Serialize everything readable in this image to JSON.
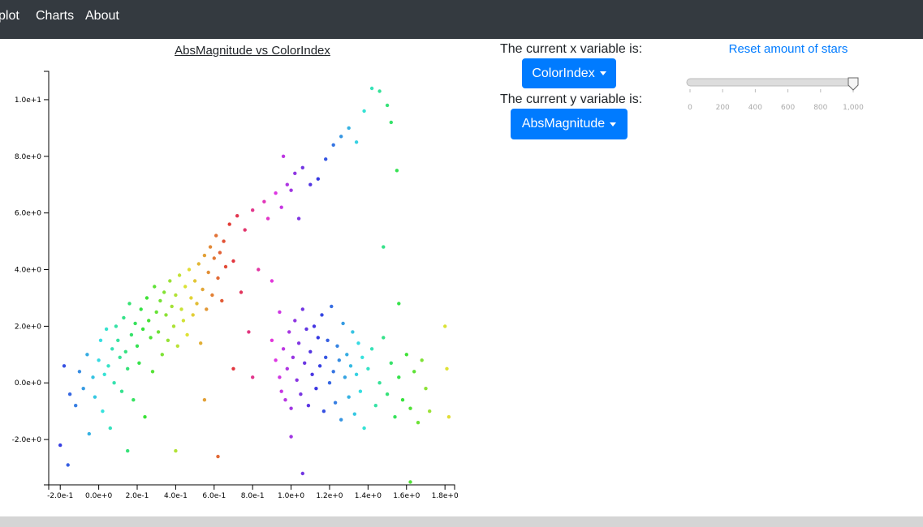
{
  "nav": {
    "items": [
      {
        "label": "plot",
        "left": -2
      },
      {
        "label": "Charts",
        "left": 44
      },
      {
        "label": "About",
        "left": 105
      }
    ]
  },
  "controls": {
    "x_label": "The current x variable is:",
    "x_value": "ColorIndex",
    "y_label": "The current y variable is:",
    "y_value": "AbsMagnitude",
    "reset_label": "Reset amount of stars",
    "slider": {
      "min": 0,
      "max": 1000,
      "value": 1000,
      "ticks": [
        "0",
        "200",
        "400",
        "600",
        "800",
        "1,000"
      ]
    }
  },
  "chart_data": {
    "type": "scatter",
    "title": "AbsMagnitude vs ColorIndex",
    "xlabel": "ColorIndex",
    "ylabel": "AbsMagnitude",
    "xlim": [
      -0.26,
      1.85
    ],
    "ylim": [
      -3.6,
      11.0
    ],
    "x_ticks": [
      "-2.0e-1",
      "0.0e+0",
      "2.0e-1",
      "4.0e-1",
      "6.0e-1",
      "8.0e-1",
      "1.0e+0",
      "1.2e+0",
      "1.4e+0",
      "1.6e+0",
      "1.8e+0"
    ],
    "x_tick_values": [
      -0.2,
      0,
      0.2,
      0.4,
      0.6,
      0.8,
      1.0,
      1.2,
      1.4,
      1.6,
      1.8
    ],
    "y_ticks": [
      "-2.0e+0",
      "0.0e+0",
      "2.0e+0",
      "4.0e+0",
      "6.0e+0",
      "8.0e+0",
      "1.0e+1"
    ],
    "y_tick_values": [
      -2,
      0,
      2,
      4,
      6,
      8,
      10
    ],
    "color_scale": "rainbow by ColorIndex",
    "points": [
      [
        -0.2,
        -2.2
      ],
      [
        -0.16,
        -2.9
      ],
      [
        -0.18,
        0.6
      ],
      [
        -0.15,
        -0.4
      ],
      [
        -0.12,
        -0.8
      ],
      [
        -0.1,
        0.4
      ],
      [
        -0.08,
        -0.2
      ],
      [
        -0.06,
        1.0
      ],
      [
        -0.05,
        -1.8
      ],
      [
        -0.03,
        0.2
      ],
      [
        -0.02,
        -0.5
      ],
      [
        0.0,
        0.8
      ],
      [
        0.01,
        1.5
      ],
      [
        0.02,
        -1.0
      ],
      [
        0.03,
        0.3
      ],
      [
        0.04,
        1.9
      ],
      [
        0.05,
        0.6
      ],
      [
        0.06,
        -1.6
      ],
      [
        0.07,
        1.2
      ],
      [
        0.08,
        0.0
      ],
      [
        0.09,
        2.0
      ],
      [
        0.1,
        1.5
      ],
      [
        0.11,
        0.9
      ],
      [
        0.12,
        -0.3
      ],
      [
        0.13,
        2.3
      ],
      [
        0.14,
        1.1
      ],
      [
        0.15,
        0.5
      ],
      [
        0.16,
        2.8
      ],
      [
        0.17,
        1.7
      ],
      [
        0.18,
        -0.6
      ],
      [
        0.19,
        2.1
      ],
      [
        0.2,
        1.3
      ],
      [
        0.21,
        0.7
      ],
      [
        0.22,
        2.6
      ],
      [
        0.23,
        1.9
      ],
      [
        0.24,
        -1.2
      ],
      [
        0.25,
        3.0
      ],
      [
        0.26,
        2.2
      ],
      [
        0.27,
        1.6
      ],
      [
        0.28,
        0.4
      ],
      [
        0.29,
        3.4
      ],
      [
        0.3,
        2.5
      ],
      [
        0.31,
        1.8
      ],
      [
        0.32,
        2.9
      ],
      [
        0.33,
        1.0
      ],
      [
        0.34,
        3.2
      ],
      [
        0.35,
        2.4
      ],
      [
        0.36,
        1.5
      ],
      [
        0.37,
        3.6
      ],
      [
        0.38,
        2.7
      ],
      [
        0.39,
        2.0
      ],
      [
        0.4,
        3.1
      ],
      [
        0.41,
        1.3
      ],
      [
        0.42,
        3.8
      ],
      [
        0.43,
        2.6
      ],
      [
        0.44,
        2.2
      ],
      [
        0.45,
        3.4
      ],
      [
        0.46,
        1.7
      ],
      [
        0.47,
        4.0
      ],
      [
        0.48,
        3.0
      ],
      [
        0.49,
        2.4
      ],
      [
        0.5,
        3.6
      ],
      [
        0.51,
        2.8
      ],
      [
        0.52,
        4.2
      ],
      [
        0.53,
        1.4
      ],
      [
        0.54,
        3.3
      ],
      [
        0.55,
        4.5
      ],
      [
        0.56,
        2.6
      ],
      [
        0.57,
        3.9
      ],
      [
        0.58,
        4.8
      ],
      [
        0.59,
        3.1
      ],
      [
        0.6,
        4.4
      ],
      [
        0.61,
        5.2
      ],
      [
        0.62,
        3.7
      ],
      [
        0.63,
        4.6
      ],
      [
        0.64,
        2.9
      ],
      [
        0.65,
        5.0
      ],
      [
        0.66,
        4.1
      ],
      [
        0.68,
        5.6
      ],
      [
        0.7,
        4.3
      ],
      [
        0.72,
        5.9
      ],
      [
        0.74,
        3.2
      ],
      [
        0.76,
        5.4
      ],
      [
        0.78,
        1.8
      ],
      [
        0.8,
        6.1
      ],
      [
        0.83,
        4.0
      ],
      [
        0.86,
        6.4
      ],
      [
        0.88,
        5.8
      ],
      [
        0.9,
        3.6
      ],
      [
        0.92,
        6.7
      ],
      [
        0.94,
        2.5
      ],
      [
        0.95,
        6.2
      ],
      [
        0.96,
        8.0
      ],
      [
        0.98,
        7.0
      ],
      [
        1.0,
        6.8
      ],
      [
        1.02,
        7.4
      ],
      [
        1.04,
        5.8
      ],
      [
        1.06,
        7.6
      ],
      [
        1.1,
        7.0
      ],
      [
        1.14,
        7.2
      ],
      [
        1.18,
        7.9
      ],
      [
        1.22,
        8.4
      ],
      [
        1.26,
        8.7
      ],
      [
        1.3,
        9.0
      ],
      [
        1.34,
        8.5
      ],
      [
        1.38,
        9.6
      ],
      [
        1.42,
        10.4
      ],
      [
        1.46,
        10.3
      ],
      [
        1.5,
        9.8
      ],
      [
        1.52,
        9.2
      ],
      [
        1.55,
        7.5
      ],
      [
        1.48,
        4.8
      ],
      [
        1.56,
        2.8
      ],
      [
        0.9,
        1.5
      ],
      [
        0.92,
        0.8
      ],
      [
        0.94,
        0.2
      ],
      [
        0.95,
        -0.3
      ],
      [
        0.96,
        1.2
      ],
      [
        0.97,
        -0.6
      ],
      [
        0.98,
        0.5
      ],
      [
        0.99,
        1.8
      ],
      [
        1.0,
        -0.9
      ],
      [
        1.01,
        0.9
      ],
      [
        1.02,
        2.2
      ],
      [
        1.03,
        0.1
      ],
      [
        1.04,
        1.4
      ],
      [
        1.05,
        -0.4
      ],
      [
        1.06,
        2.6
      ],
      [
        1.07,
        0.7
      ],
      [
        1.08,
        1.9
      ],
      [
        1.09,
        -0.8
      ],
      [
        1.1,
        1.1
      ],
      [
        1.11,
        0.3
      ],
      [
        1.12,
        2.0
      ],
      [
        1.13,
        -0.2
      ],
      [
        1.14,
        1.6
      ],
      [
        1.15,
        0.6
      ],
      [
        1.16,
        2.4
      ],
      [
        1.17,
        -1.0
      ],
      [
        1.18,
        0.9
      ],
      [
        1.19,
        1.5
      ],
      [
        1.2,
        0.0
      ],
      [
        1.21,
        2.7
      ],
      [
        1.22,
        0.4
      ],
      [
        1.23,
        -0.7
      ],
      [
        1.24,
        1.3
      ],
      [
        1.25,
        0.8
      ],
      [
        1.26,
        -1.3
      ],
      [
        1.27,
        2.1
      ],
      [
        1.28,
        0.2
      ],
      [
        1.29,
        1.0
      ],
      [
        1.3,
        -0.5
      ],
      [
        1.31,
        0.6
      ],
      [
        1.32,
        1.8
      ],
      [
        1.33,
        -1.1
      ],
      [
        1.34,
        0.3
      ],
      [
        1.35,
        1.4
      ],
      [
        1.36,
        -0.3
      ],
      [
        1.37,
        0.9
      ],
      [
        1.38,
        -1.6
      ],
      [
        1.4,
        0.5
      ],
      [
        1.42,
        1.2
      ],
      [
        1.44,
        -0.8
      ],
      [
        1.46,
        0.0
      ],
      [
        1.48,
        1.6
      ],
      [
        1.5,
        -0.4
      ],
      [
        1.52,
        0.7
      ],
      [
        1.54,
        -1.2
      ],
      [
        1.56,
        0.2
      ],
      [
        1.58,
        -0.6
      ],
      [
        1.6,
        1.0
      ],
      [
        1.62,
        -0.9
      ],
      [
        1.64,
        0.4
      ],
      [
        1.66,
        -1.4
      ],
      [
        1.68,
        0.8
      ],
      [
        1.7,
        -0.2
      ],
      [
        1.72,
        -1.0
      ],
      [
        1.8,
        2.0
      ],
      [
        1.82,
        -1.2
      ],
      [
        1.81,
        0.5
      ],
      [
        1.62,
        -3.5
      ],
      [
        1.06,
        -3.2
      ],
      [
        1.0,
        -1.9
      ],
      [
        0.62,
        -2.6
      ],
      [
        0.4,
        -2.4
      ],
      [
        0.15,
        -2.4
      ],
      [
        0.55,
        -0.6
      ],
      [
        0.7,
        0.5
      ],
      [
        0.8,
        0.2
      ]
    ]
  }
}
